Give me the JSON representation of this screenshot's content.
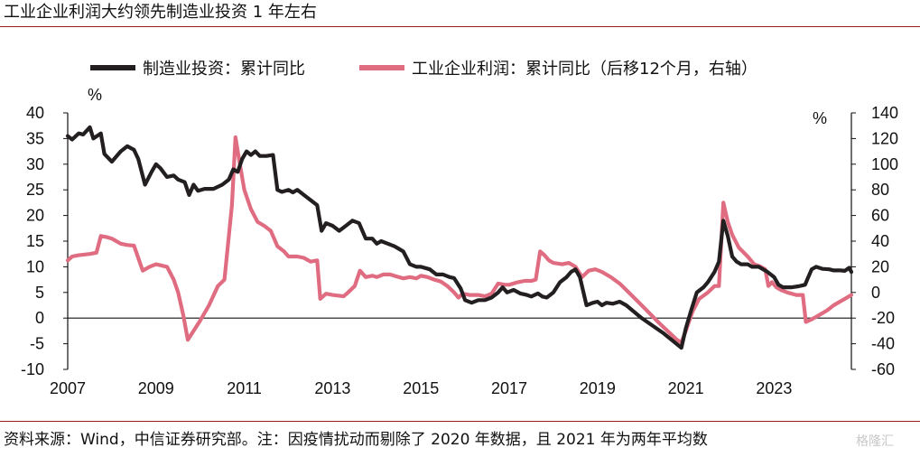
{
  "title": "工业企业利润大约领先制造业投资 1 年左右",
  "source": "资料来源：Wind，中信证券研究部。注：因疫情扰动而剔除了 2020 年数据，且 2021 年为两年平均数",
  "watermark": "格隆汇",
  "chart_data": {
    "type": "line",
    "legend_position": "top",
    "grid": false,
    "x_tick_labels": [
      "2007",
      "2009",
      "2011",
      "2013",
      "2015",
      "2017",
      "2019",
      "2021",
      "2023"
    ],
    "x_range": [
      2007.0,
      2024.75
    ],
    "left_axis": {
      "unit": "%",
      "ylim": [
        -10,
        40
      ],
      "ticks": [
        40,
        35,
        30,
        25,
        20,
        15,
        10,
        5,
        0,
        -5,
        -10
      ]
    },
    "right_axis": {
      "unit": "%",
      "ylim": [
        -60,
        140
      ],
      "ticks": [
        140,
        120,
        100,
        80,
        60,
        40,
        20,
        0,
        -20,
        -40,
        -60
      ]
    },
    "series": [
      {
        "name": "制造业投资：累计同比",
        "color": "#231f20",
        "axis": "left",
        "points": [
          [
            2007.0,
            35.5
          ],
          [
            2007.1,
            34.8
          ],
          [
            2007.25,
            36.0
          ],
          [
            2007.35,
            35.8
          ],
          [
            2007.5,
            37.2
          ],
          [
            2007.58,
            35.0
          ],
          [
            2007.75,
            36.0
          ],
          [
            2007.83,
            32.0
          ],
          [
            2008.0,
            30.5
          ],
          [
            2008.2,
            32.5
          ],
          [
            2008.35,
            33.5
          ],
          [
            2008.5,
            32.8
          ],
          [
            2008.6,
            31.0
          ],
          [
            2008.75,
            26.0
          ],
          [
            2008.9,
            28.5
          ],
          [
            2009.0,
            30.0
          ],
          [
            2009.1,
            29.2
          ],
          [
            2009.25,
            27.5
          ],
          [
            2009.4,
            27.8
          ],
          [
            2009.5,
            27.0
          ],
          [
            2009.65,
            26.5
          ],
          [
            2009.75,
            24.0
          ],
          [
            2009.85,
            26.0
          ],
          [
            2009.95,
            24.8
          ],
          [
            2010.1,
            25.2
          ],
          [
            2010.3,
            25.2
          ],
          [
            2010.5,
            26.0
          ],
          [
            2010.65,
            27.0
          ],
          [
            2010.75,
            29.0
          ],
          [
            2010.85,
            28.5
          ],
          [
            2010.95,
            31.0
          ],
          [
            2011.05,
            32.5
          ],
          [
            2011.15,
            31.8
          ],
          [
            2011.25,
            32.5
          ],
          [
            2011.35,
            31.6
          ],
          [
            2011.5,
            31.6
          ],
          [
            2011.65,
            31.8
          ],
          [
            2011.75,
            25.0
          ],
          [
            2011.85,
            24.6
          ],
          [
            2012.0,
            25.0
          ],
          [
            2012.1,
            24.5
          ],
          [
            2012.2,
            25.0
          ],
          [
            2012.35,
            24.0
          ],
          [
            2012.5,
            23.0
          ],
          [
            2012.65,
            22.0
          ],
          [
            2012.75,
            17.0
          ],
          [
            2012.85,
            18.5
          ],
          [
            2013.0,
            18.0
          ],
          [
            2013.15,
            17.0
          ],
          [
            2013.3,
            18.0
          ],
          [
            2013.45,
            19.0
          ],
          [
            2013.6,
            18.5
          ],
          [
            2013.75,
            15.5
          ],
          [
            2013.9,
            15.5
          ],
          [
            2014.0,
            14.5
          ],
          [
            2014.1,
            15.0
          ],
          [
            2014.25,
            14.5
          ],
          [
            2014.4,
            14.0
          ],
          [
            2014.5,
            13.5
          ],
          [
            2014.6,
            13.0
          ],
          [
            2014.75,
            10.5
          ],
          [
            2014.9,
            10.0
          ],
          [
            2015.0,
            10.0
          ],
          [
            2015.2,
            9.5
          ],
          [
            2015.35,
            8.5
          ],
          [
            2015.5,
            8.5
          ],
          [
            2015.65,
            8.0
          ],
          [
            2015.75,
            7.8
          ],
          [
            2015.9,
            5.8
          ],
          [
            2016.0,
            3.5
          ],
          [
            2016.15,
            3.0
          ],
          [
            2016.3,
            3.5
          ],
          [
            2016.45,
            3.5
          ],
          [
            2016.6,
            4.0
          ],
          [
            2016.75,
            5.0
          ],
          [
            2016.85,
            6.0
          ],
          [
            2016.95,
            5.0
          ],
          [
            2017.1,
            5.5
          ],
          [
            2017.25,
            4.8
          ],
          [
            2017.4,
            4.5
          ],
          [
            2017.5,
            4.2
          ],
          [
            2017.65,
            4.8
          ],
          [
            2017.75,
            4.2
          ],
          [
            2017.85,
            4.0
          ],
          [
            2018.0,
            5.0
          ],
          [
            2018.15,
            7.0
          ],
          [
            2018.3,
            8.0
          ],
          [
            2018.4,
            9.0
          ],
          [
            2018.5,
            9.5
          ],
          [
            2018.6,
            8.0
          ],
          [
            2018.75,
            2.5
          ],
          [
            2018.9,
            3.0
          ],
          [
            2019.0,
            3.2
          ],
          [
            2019.1,
            2.5
          ],
          [
            2019.2,
            3.0
          ],
          [
            2019.35,
            2.8
          ],
          [
            2019.5,
            3.2
          ],
          [
            2019.65,
            2.5
          ],
          [
            2020.0,
            0.0
          ],
          [
            2020.5,
            -3.0
          ],
          [
            2020.9,
            -5.8
          ],
          [
            2021.0,
            -2.0
          ],
          [
            2021.12,
            1.5
          ],
          [
            2021.25,
            5.0
          ],
          [
            2021.4,
            6.0
          ],
          [
            2021.5,
            7.0
          ],
          [
            2021.65,
            9.0
          ],
          [
            2021.75,
            11.0
          ],
          [
            2021.85,
            19.0
          ],
          [
            2021.95,
            16.0
          ],
          [
            2022.05,
            12.0
          ],
          [
            2022.15,
            11.0
          ],
          [
            2022.25,
            10.5
          ],
          [
            2022.4,
            10.5
          ],
          [
            2022.5,
            10.0
          ],
          [
            2022.65,
            10.0
          ],
          [
            2022.75,
            9.5
          ],
          [
            2022.85,
            9.0
          ],
          [
            2023.0,
            8.0
          ],
          [
            2023.1,
            6.5
          ],
          [
            2023.2,
            6.0
          ],
          [
            2023.3,
            6.0
          ],
          [
            2023.4,
            6.0
          ],
          [
            2023.55,
            6.2
          ],
          [
            2023.7,
            6.5
          ],
          [
            2023.75,
            7.5
          ],
          [
            2023.85,
            9.5
          ],
          [
            2023.95,
            10.0
          ],
          [
            2024.1,
            9.6
          ],
          [
            2024.25,
            9.5
          ],
          [
            2024.35,
            9.3
          ],
          [
            2024.5,
            9.3
          ],
          [
            2024.6,
            9.2
          ],
          [
            2024.7,
            9.8
          ],
          [
            2024.75,
            9.0
          ]
        ]
      },
      {
        "name": "工业企业利润：累计同比（后移12个月，右轴）",
        "color": "#e06c81",
        "axis": "right",
        "points": [
          [
            2007.0,
            25.0
          ],
          [
            2007.1,
            28.0
          ],
          [
            2007.25,
            29.0
          ],
          [
            2007.5,
            30.0
          ],
          [
            2007.65,
            31.0
          ],
          [
            2007.75,
            44.0
          ],
          [
            2007.9,
            43.0
          ],
          [
            2008.0,
            42.0
          ],
          [
            2008.2,
            38.0
          ],
          [
            2008.35,
            37.0
          ],
          [
            2008.5,
            36.5
          ],
          [
            2008.7,
            17.0
          ],
          [
            2008.85,
            20.0
          ],
          [
            2009.0,
            22.0
          ],
          [
            2009.25,
            20.0
          ],
          [
            2009.4,
            10.0
          ],
          [
            2009.5,
            0.0
          ],
          [
            2009.62,
            -18.0
          ],
          [
            2009.72,
            -37.0
          ],
          [
            2009.85,
            -30.0
          ],
          [
            2010.0,
            -22.0
          ],
          [
            2010.2,
            -10.0
          ],
          [
            2010.4,
            5.0
          ],
          [
            2010.55,
            10.0
          ],
          [
            2010.72,
            68.0
          ],
          [
            2010.8,
            121.0
          ],
          [
            2010.9,
            100.0
          ],
          [
            2011.0,
            80.0
          ],
          [
            2011.15,
            65.0
          ],
          [
            2011.3,
            55.0
          ],
          [
            2011.45,
            52.0
          ],
          [
            2011.6,
            48.0
          ],
          [
            2011.75,
            36.0
          ],
          [
            2011.9,
            32.0
          ],
          [
            2012.0,
            28.0
          ],
          [
            2012.2,
            28.0
          ],
          [
            2012.35,
            27.0
          ],
          [
            2012.5,
            24.0
          ],
          [
            2012.65,
            25.0
          ],
          [
            2012.72,
            -5.0
          ],
          [
            2012.85,
            -1.0
          ],
          [
            2013.0,
            -2.0
          ],
          [
            2013.25,
            -3.0
          ],
          [
            2013.35,
            0.0
          ],
          [
            2013.5,
            5.0
          ],
          [
            2013.62,
            17.0
          ],
          [
            2013.75,
            12.0
          ],
          [
            2013.9,
            13.0
          ],
          [
            2014.0,
            12.0
          ],
          [
            2014.15,
            14.0
          ],
          [
            2014.3,
            14.0
          ],
          [
            2014.45,
            12.5
          ],
          [
            2014.6,
            11.0
          ],
          [
            2014.75,
            12.0
          ],
          [
            2014.9,
            11.0
          ],
          [
            2015.0,
            13.0
          ],
          [
            2015.15,
            12.0
          ],
          [
            2015.3,
            10.0
          ],
          [
            2015.45,
            8.5
          ],
          [
            2015.6,
            5.0
          ],
          [
            2015.75,
            0.0
          ],
          [
            2015.85,
            -4.0
          ],
          [
            2015.95,
            -1.0
          ],
          [
            2016.1,
            -2.0
          ],
          [
            2016.3,
            -2.0
          ],
          [
            2016.45,
            -3.0
          ],
          [
            2016.6,
            -1.0
          ],
          [
            2016.75,
            7.0
          ],
          [
            2016.9,
            6.0
          ],
          [
            2017.0,
            6.0
          ],
          [
            2017.2,
            8.0
          ],
          [
            2017.35,
            9.0
          ],
          [
            2017.5,
            9.0
          ],
          [
            2017.6,
            10.0
          ],
          [
            2017.7,
            32.0
          ],
          [
            2017.8,
            29.0
          ],
          [
            2017.9,
            25.0
          ],
          [
            2018.0,
            23.0
          ],
          [
            2018.2,
            22.0
          ],
          [
            2018.35,
            23.0
          ],
          [
            2018.5,
            20.0
          ],
          [
            2018.65,
            12.0
          ],
          [
            2018.8,
            17.0
          ],
          [
            2018.95,
            18.0
          ],
          [
            2019.1,
            16.0
          ],
          [
            2019.3,
            12.0
          ],
          [
            2019.5,
            7.0
          ],
          [
            2019.65,
            2.0
          ],
          [
            2020.0,
            -10.0
          ],
          [
            2020.4,
            -24.0
          ],
          [
            2020.8,
            -37.0
          ],
          [
            2020.9,
            -39.0
          ],
          [
            2021.0,
            -30.0
          ],
          [
            2021.15,
            -15.0
          ],
          [
            2021.3,
            -5.0
          ],
          [
            2021.5,
            0.0
          ],
          [
            2021.65,
            5.0
          ],
          [
            2021.75,
            5.0
          ],
          [
            2021.85,
            70.0
          ],
          [
            2021.95,
            55.0
          ],
          [
            2022.05,
            45.0
          ],
          [
            2022.2,
            35.0
          ],
          [
            2022.4,
            28.0
          ],
          [
            2022.55,
            22.0
          ],
          [
            2022.7,
            20.0
          ],
          [
            2022.8,
            18.0
          ],
          [
            2022.87,
            5.0
          ],
          [
            2022.95,
            8.0
          ],
          [
            2023.05,
            4.0
          ],
          [
            2023.15,
            2.0
          ],
          [
            2023.3,
            0.0
          ],
          [
            2023.5,
            -2.0
          ],
          [
            2023.65,
            -2.0
          ],
          [
            2023.72,
            -23.0
          ],
          [
            2023.85,
            -21.0
          ],
          [
            2024.0,
            -18.0
          ],
          [
            2024.2,
            -14.0
          ],
          [
            2024.35,
            -10.0
          ],
          [
            2024.5,
            -7.0
          ],
          [
            2024.6,
            -5.0
          ],
          [
            2024.75,
            -2.0
          ]
        ]
      }
    ]
  }
}
